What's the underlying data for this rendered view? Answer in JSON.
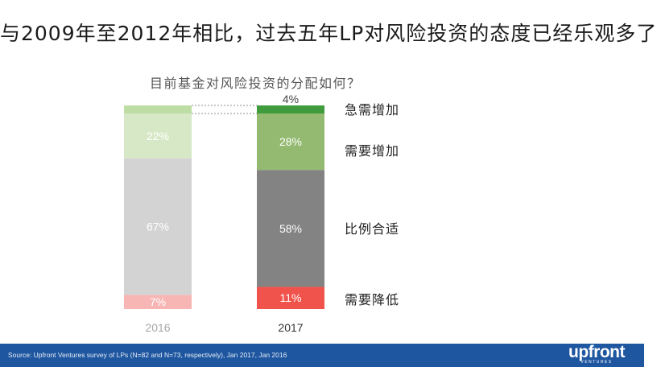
{
  "title": "与2009年至2012年相比，过去五年LP对风险投资的态度已经乐观多了",
  "subtitle": "目前基金对风险投资的分配如何？",
  "footer": {
    "source": "Source: Upfront Ventures survey of LPs (N=82 and N=73, respectively), Jan 2017, Jan 2016",
    "logo": "upfront",
    "logo_sub": "VENTURES",
    "color": "#1e56a0"
  },
  "chart_data": {
    "type": "bar",
    "stacked": true,
    "normalized": true,
    "categories": [
      "2016",
      "2017"
    ],
    "series": [
      {
        "name": "需要降低",
        "values": [
          7,
          11
        ],
        "labels": [
          "7%",
          "11%"
        ],
        "colors": [
          "#f7b5b3",
          "#f0534b"
        ]
      },
      {
        "name": "比例合适",
        "values": [
          67,
          58
        ],
        "labels": [
          "67%",
          "58%"
        ],
        "colors": [
          "#d3d3d3",
          "#838383"
        ]
      },
      {
        "name": "需要增加",
        "values": [
          22,
          28
        ],
        "labels": [
          "22%",
          "28%"
        ],
        "colors": [
          "#d7e8c7",
          "#94ba72"
        ]
      },
      {
        "name": "急需增加",
        "values": [
          4,
          4
        ],
        "labels": [
          "4%",
          "4%"
        ],
        "colors": [
          "#bedda5",
          "#3f9b3b"
        ]
      }
    ],
    "category_label_colors": [
      "#a6a6a6",
      "#333333"
    ],
    "legend_placement": "right",
    "grid": false
  }
}
